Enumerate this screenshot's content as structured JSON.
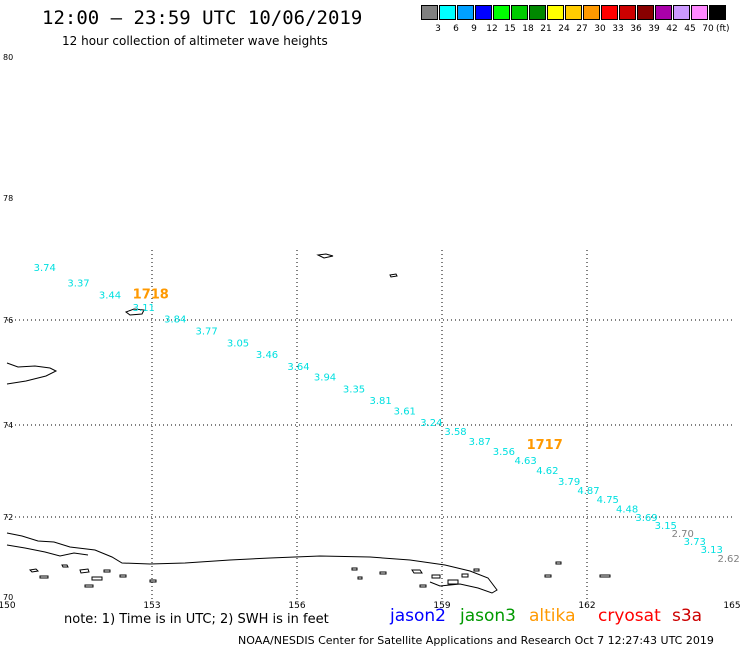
{
  "header": {
    "title": "12:00 – 23:59 UTC 10/06/2019",
    "subtitle": "12 hour collection of altimeter wave heights"
  },
  "legend": {
    "unit": "(ft)",
    "items": [
      {
        "label": "3",
        "color": "#808080"
      },
      {
        "label": "6",
        "color": "#00ffff"
      },
      {
        "label": "9",
        "color": "#00a0ff"
      },
      {
        "label": "12",
        "color": "#0000ff"
      },
      {
        "label": "15",
        "color": "#00ff00"
      },
      {
        "label": "18",
        "color": "#00cc00"
      },
      {
        "label": "21",
        "color": "#008800"
      },
      {
        "label": "24",
        "color": "#ffff00"
      },
      {
        "label": "27",
        "color": "#ffcc00"
      },
      {
        "label": "30",
        "color": "#ff9900"
      },
      {
        "label": "33",
        "color": "#ff0000"
      },
      {
        "label": "36",
        "color": "#cc0000"
      },
      {
        "label": "39",
        "color": "#880000"
      },
      {
        "label": "42",
        "color": "#aa00aa"
      },
      {
        "label": "45",
        "color": "#cc99ff"
      },
      {
        "label": "70",
        "color": "#ff88ff"
      },
      {
        "label": "",
        "color": "#000000"
      }
    ]
  },
  "map": {
    "lon_min": 150,
    "lon_max": 165,
    "lat_min": 70,
    "lat_max": 80,
    "lon_ticks": [
      "150",
      "153",
      "156",
      "159",
      "162",
      "165"
    ],
    "lat_ticks": [
      "70",
      "72",
      "74",
      "76",
      "78",
      "80"
    ],
    "cyan": "#00e0e0",
    "gray": "#808080",
    "orange": "#ff9900",
    "time_labels": [
      {
        "text": "1718",
        "lon": 152.6,
        "lat": 76.35
      },
      {
        "text": "1717",
        "lon": 160.75,
        "lat": 73.48
      }
    ],
    "wave_points": [
      {
        "v": "3.74",
        "lon": 150.55,
        "lat": 76.8,
        "c": "cyan"
      },
      {
        "v": "3.37",
        "lon": 151.25,
        "lat": 76.55,
        "c": "cyan"
      },
      {
        "v": "3.44",
        "lon": 151.9,
        "lat": 76.35,
        "c": "cyan"
      },
      {
        "v": "3.11",
        "lon": 152.6,
        "lat": 76.15,
        "c": "cyan"
      },
      {
        "v": "3.84",
        "lon": 153.25,
        "lat": 75.95,
        "c": "cyan"
      },
      {
        "v": "3.77",
        "lon": 153.9,
        "lat": 75.72,
        "c": "cyan"
      },
      {
        "v": "3.05",
        "lon": 154.55,
        "lat": 75.5,
        "c": "cyan"
      },
      {
        "v": "3.46",
        "lon": 155.15,
        "lat": 75.28,
        "c": "cyan"
      },
      {
        "v": "3.64",
        "lon": 155.8,
        "lat": 75.05,
        "c": "cyan"
      },
      {
        "v": "3.94",
        "lon": 156.35,
        "lat": 74.85,
        "c": "cyan"
      },
      {
        "v": "3.35",
        "lon": 156.95,
        "lat": 74.62,
        "c": "cyan"
      },
      {
        "v": "3.81",
        "lon": 157.5,
        "lat": 74.4,
        "c": "cyan"
      },
      {
        "v": "3.61",
        "lon": 158.0,
        "lat": 74.2,
        "c": "cyan"
      },
      {
        "v": "3.24",
        "lon": 158.55,
        "lat": 73.98,
        "c": "cyan"
      },
      {
        "v": "3.58",
        "lon": 159.05,
        "lat": 73.78,
        "c": "cyan"
      },
      {
        "v": "3.87",
        "lon": 159.55,
        "lat": 73.56,
        "c": "cyan"
      },
      {
        "v": "3.56",
        "lon": 160.05,
        "lat": 73.35,
        "c": "cyan"
      },
      {
        "v": "4.63",
        "lon": 160.5,
        "lat": 73.15,
        "c": "cyan"
      },
      {
        "v": "4.62",
        "lon": 160.95,
        "lat": 72.93,
        "c": "cyan"
      },
      {
        "v": "3.79",
        "lon": 161.4,
        "lat": 72.7,
        "c": "cyan"
      },
      {
        "v": "4.87",
        "lon": 161.8,
        "lat": 72.5,
        "c": "cyan"
      },
      {
        "v": "4.75",
        "lon": 162.2,
        "lat": 72.3,
        "c": "cyan"
      },
      {
        "v": "4.48",
        "lon": 162.6,
        "lat": 72.1,
        "c": "cyan"
      },
      {
        "v": "3.69",
        "lon": 163.0,
        "lat": 71.9,
        "c": "cyan"
      },
      {
        "v": "3.15",
        "lon": 163.4,
        "lat": 71.7,
        "c": "cyan"
      },
      {
        "v": "2.70",
        "lon": 163.75,
        "lat": 71.5,
        "c": "gray"
      },
      {
        "v": "3.73",
        "lon": 164.0,
        "lat": 71.3,
        "c": "cyan"
      },
      {
        "v": "3.13",
        "lon": 164.35,
        "lat": 71.1,
        "c": "cyan"
      },
      {
        "v": "2.62",
        "lon": 164.7,
        "lat": 70.88,
        "c": "gray"
      }
    ]
  },
  "note": "note: 1) Time is in UTC; 2) SWH is in feet",
  "satellites": [
    {
      "name": "jason2",
      "color": "#0000ff"
    },
    {
      "name": "jason3",
      "color": "#009900"
    },
    {
      "name": "altika",
      "color": "#ff9900"
    },
    {
      "name": "cryosat",
      "color": "#ff0000"
    },
    {
      "name": "s3a",
      "color": "#cc0000"
    }
  ],
  "footer": "NOAA/NESDIS Center for Satellite Applications and Research    Oct  7 12:27:43 UTC 2019"
}
